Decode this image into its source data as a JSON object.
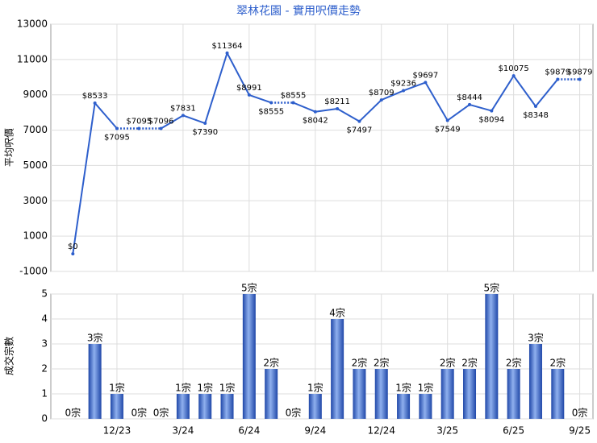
{
  "chart_data": [
    {
      "type": "line",
      "title": "翠林花園 - 實用呎價走勢",
      "y_label": "平均呎價",
      "color": "#2e5fcc",
      "values": [
        0,
        8533,
        7095,
        7095,
        7096,
        7831,
        7390,
        11364,
        8991,
        8555,
        8555,
        8042,
        8211,
        7497,
        8709,
        9236,
        9697,
        7549,
        8444,
        8094,
        10075,
        8348,
        9879,
        9879
      ],
      "value_labels": [
        "$0",
        "$8533",
        "$7095",
        "$7095",
        "$7096",
        "$7831",
        "$7390",
        "$11364",
        "$8991",
        "$8555",
        "$8555",
        "$8042",
        "$8211",
        "$7497",
        "$8709",
        "$9236",
        "$9697",
        "$7549",
        "$8444",
        "$8094",
        "$10075",
        "$8348",
        "$9879",
        "$9879"
      ],
      "ylim": [
        -1000,
        13000
      ],
      "yticks": [
        -1000,
        1000,
        3000,
        5000,
        7000,
        9000,
        11000,
        13000
      ],
      "grid": true
    },
    {
      "type": "bar",
      "y_label": "成交宗數",
      "color": "#3a67c9",
      "categories": [
        null,
        null,
        "12/23",
        null,
        null,
        "3/24",
        null,
        null,
        "6/24",
        null,
        null,
        "9/24",
        null,
        null,
        "12/24",
        null,
        null,
        "3/25",
        null,
        null,
        "6/25",
        null,
        null,
        "9/25"
      ],
      "values": [
        0,
        3,
        1,
        0,
        0,
        1,
        1,
        1,
        5,
        2,
        0,
        1,
        4,
        2,
        2,
        1,
        1,
        2,
        2,
        5,
        2,
        3,
        2,
        0
      ],
      "value_labels": [
        "0宗",
        "3宗",
        "1宗",
        "0宗",
        "0宗",
        "1宗",
        "1宗",
        "1宗",
        "5宗",
        "2宗",
        "0宗",
        "1宗",
        "4宗",
        "2宗",
        "2宗",
        "1宗",
        "1宗",
        "2宗",
        "2宗",
        "5宗",
        "2宗",
        "3宗",
        "2宗",
        "0宗"
      ],
      "ylim": [
        0,
        5
      ],
      "yticks": [
        0,
        1,
        2,
        3,
        4,
        5
      ],
      "grid": true
    }
  ]
}
